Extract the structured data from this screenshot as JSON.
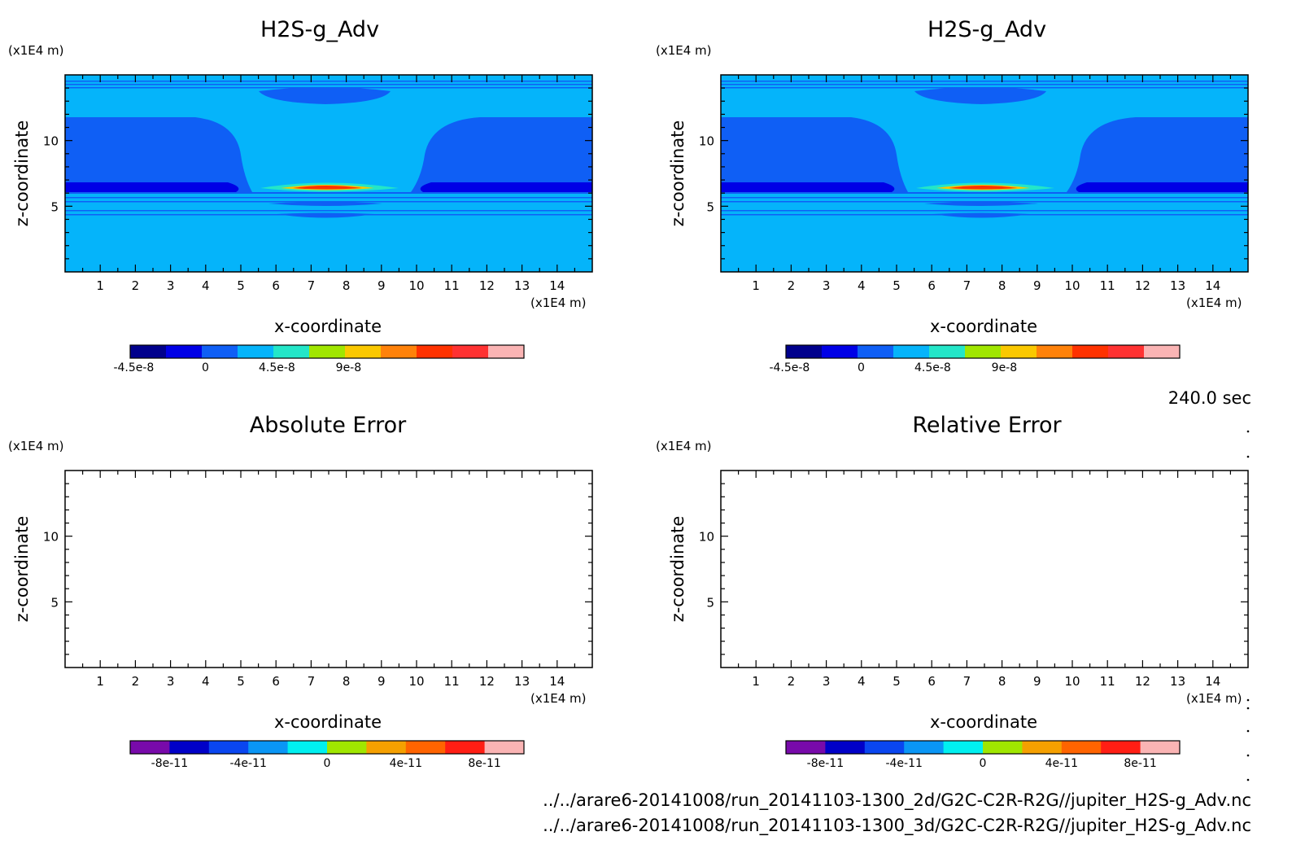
{
  "time_label": "240.0 sec",
  "footer_lines": [
    "../../arare6-20141008/run_20141103-1300_2d/G2C-C2R-R2G//jupiter_H2S-g_Adv.nc",
    "../../arare6-20141008/run_20141103-1300_3d/G2C-C2R-R2G//jupiter_H2S-g_Adv.nc"
  ],
  "chart_data": [
    {
      "type": "heatmap",
      "title": "H2S-g_Adv",
      "xlabel": "x-coordinate",
      "ylabel": "z-coordinate",
      "x_unit": "(x1E4 m)",
      "y_unit": "(x1E4 m)",
      "xlim": [
        0,
        15
      ],
      "ylim": [
        0,
        15
      ],
      "x_ticks": [
        "1",
        "2",
        "3",
        "4",
        "5",
        "6",
        "7",
        "8",
        "9",
        "10",
        "11",
        "12",
        "13",
        "14"
      ],
      "y_ticks": [
        "5",
        "10"
      ],
      "colorbar": {
        "colors": [
          "#00008c",
          "#0000e6",
          "#0f5ff5",
          "#05b4fa",
          "#23e6c8",
          "#a0e600",
          "#fac800",
          "#ff820a",
          "#ff3200",
          "#ff3232",
          "#fab4b4"
        ],
        "tick_labels": [
          "-4.5e-8",
          "0",
          "4.5e-8",
          "9e-8"
        ]
      }
    },
    {
      "type": "heatmap",
      "title": "H2S-g_Adv",
      "xlabel": "x-coordinate",
      "ylabel": "z-coordinate",
      "x_unit": "(x1E4 m)",
      "y_unit": "(x1E4 m)",
      "xlim": [
        0,
        15
      ],
      "ylim": [
        0,
        15
      ],
      "x_ticks": [
        "1",
        "2",
        "3",
        "4",
        "5",
        "6",
        "7",
        "8",
        "9",
        "10",
        "11",
        "12",
        "13",
        "14"
      ],
      "y_ticks": [
        "5",
        "10"
      ],
      "colorbar": {
        "colors": [
          "#00008c",
          "#0000e6",
          "#0f5ff5",
          "#05b4fa",
          "#23e6c8",
          "#a0e600",
          "#fac800",
          "#ff820a",
          "#ff3200",
          "#ff3232",
          "#fab4b4"
        ],
        "tick_labels": [
          "-4.5e-8",
          "0",
          "4.5e-8",
          "9e-8"
        ]
      }
    },
    {
      "type": "heatmap",
      "title": "Absolute Error",
      "xlabel": "x-coordinate",
      "ylabel": "z-coordinate",
      "x_unit": "(x1E4 m)",
      "y_unit": "(x1E4 m)",
      "xlim": [
        0,
        15
      ],
      "ylim": [
        0,
        15
      ],
      "x_ticks": [
        "1",
        "2",
        "3",
        "4",
        "5",
        "6",
        "7",
        "8",
        "9",
        "10",
        "11",
        "12",
        "13",
        "14"
      ],
      "y_ticks": [
        "5",
        "10"
      ],
      "colorbar": {
        "colors": [
          "#780aaa",
          "#0000c8",
          "#0a46f0",
          "#0a96f5",
          "#00f0f0",
          "#a0e600",
          "#f5a000",
          "#ff6400",
          "#ff1e14",
          "#fab4b4"
        ],
        "tick_labels": [
          "-8e-11",
          "-4e-11",
          "0",
          "4e-11",
          "8e-11"
        ]
      }
    },
    {
      "type": "heatmap",
      "title": "Relative Error",
      "xlabel": "x-coordinate",
      "ylabel": "z-coordinate",
      "x_unit": "(x1E4 m)",
      "y_unit": "(x1E4 m)",
      "xlim": [
        0,
        15
      ],
      "ylim": [
        0,
        15
      ],
      "x_ticks": [
        "1",
        "2",
        "3",
        "4",
        "5",
        "6",
        "7",
        "8",
        "9",
        "10",
        "11",
        "12",
        "13",
        "14"
      ],
      "y_ticks": [
        "5",
        "10"
      ],
      "colorbar": {
        "colors": [
          "#780aaa",
          "#0000c8",
          "#0a46f0",
          "#0a96f5",
          "#00f0f0",
          "#a0e600",
          "#f5a000",
          "#ff6400",
          "#ff1e14",
          "#fab4b4"
        ],
        "tick_labels": [
          "-8e-11",
          "-4e-11",
          "0",
          "4e-11",
          "8e-11"
        ]
      }
    }
  ]
}
